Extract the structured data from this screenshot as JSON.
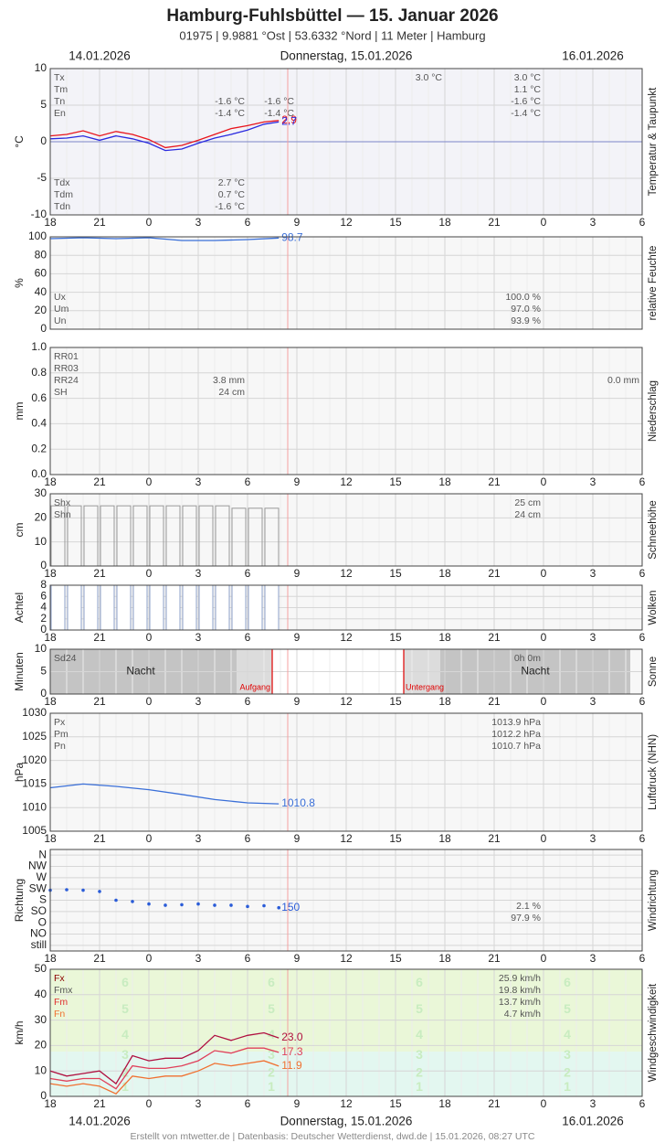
{
  "header": {
    "title": "Hamburg-Fuhlsbüttel  —  15. Januar 2026",
    "subtitle": "01975  |  9.9881 °Ost  |  53.6332 °Nord  |  11 Meter  |  Hamburg",
    "dates": [
      "14.01.2026",
      "Donnerstag, 15.01.2026",
      "16.01.2026"
    ]
  },
  "x_axis": {
    "xlim": [
      0,
      36
    ],
    "xticks": [
      {
        "value": 0,
        "label": "18"
      },
      {
        "value": 3,
        "label": "21"
      },
      {
        "value": 6,
        "label": "0"
      },
      {
        "value": 9,
        "label": "3"
      },
      {
        "value": 12,
        "label": "6"
      },
      {
        "value": 15,
        "label": "9"
      },
      {
        "value": 18,
        "label": "12"
      },
      {
        "value": 21,
        "label": "15"
      },
      {
        "value": 24,
        "label": "18"
      },
      {
        "value": 27,
        "label": "21"
      },
      {
        "value": 30,
        "label": "0"
      },
      {
        "value": 33,
        "label": "3"
      },
      {
        "value": 36,
        "label": "6"
      }
    ]
  },
  "chart_data": [
    {
      "type": "line",
      "y_label": "°C",
      "side_label": "Temperatur & Taupunkt",
      "ylim": [
        -10,
        10
      ],
      "yticks": [
        -10,
        -5,
        0,
        5,
        10
      ],
      "xtick_labels": true,
      "x": [
        0,
        1,
        2,
        3,
        4,
        5,
        6,
        7,
        8,
        9,
        10,
        11,
        12,
        13,
        13.9
      ],
      "series": [
        {
          "color": "#e8141c",
          "values": [
            0.8,
            1.0,
            1.5,
            0.8,
            1.4,
            1.0,
            0.3,
            -0.8,
            -0.5,
            0.2,
            1.0,
            1.8,
            2.2,
            2.7,
            2.9
          ],
          "value_labels": [
            null,
            null,
            null,
            null,
            null,
            null,
            null,
            null,
            null,
            null,
            null,
            null,
            null,
            null,
            "2.9"
          ]
        },
        {
          "color": "#2a2adf",
          "values": [
            0.4,
            0.5,
            0.8,
            0.2,
            0.8,
            0.4,
            -0.2,
            -1.2,
            -1.0,
            -0.2,
            0.5,
            1.0,
            1.6,
            2.4,
            2.7
          ],
          "value_labels": [
            null,
            null,
            null,
            null,
            null,
            null,
            null,
            null,
            null,
            null,
            null,
            null,
            null,
            null,
            "2.7"
          ]
        }
      ],
      "stats": [
        {
          "position": "top",
          "labels": [
            "Tx",
            "Tm",
            "Tn",
            "En"
          ],
          "columns": [
            [
              null,
              null,
              "-1.6 °C",
              "-1.4 °C"
            ],
            [
              null,
              null,
              "-1.6 °C",
              "-1.4 °C"
            ],
            [
              "3.0 °C",
              null,
              null,
              null
            ],
            [
              "3.0 °C",
              "1.1 °C",
              "-1.6 °C",
              "-1.4 °C"
            ]
          ]
        },
        {
          "position": "bottom",
          "labels": [
            "Tdx",
            "Tdm",
            "Tdn"
          ],
          "columns": [
            [
              "2.7 °C",
              "0.7 °C",
              "-1.6 °C"
            ]
          ]
        }
      ]
    },
    {
      "type": "line",
      "y_label": "%",
      "side_label": "relative Feuchte",
      "ylim": [
        0,
        100
      ],
      "yticks": [
        0,
        20,
        40,
        60,
        80,
        100
      ],
      "xtick_labels": false,
      "x": [
        0,
        2,
        4,
        6,
        8,
        10,
        12,
        13.9
      ],
      "series": [
        {
          "color": "#3a6fd8",
          "values": [
            98,
            99,
            98,
            99,
            96,
            96,
            97,
            98.7
          ],
          "value_labels": [
            null,
            null,
            null,
            null,
            null,
            null,
            null,
            "98.7"
          ]
        }
      ],
      "stats": [
        {
          "position": "bottom",
          "labels": [
            "Ux",
            "Um",
            "Un"
          ],
          "columns": [
            [
              "100.0 %",
              "97.0 %",
              "93.9 %"
            ]
          ]
        }
      ]
    },
    {
      "type": "bar",
      "y_label": "mm",
      "side_label": "Niederschlag",
      "ylim": [
        0,
        1
      ],
      "yticks": [
        {
          "value": 0,
          "label": "0.0"
        },
        0.2,
        0.4,
        0.6,
        0.8,
        {
          "value": 1,
          "label": "1.0"
        }
      ],
      "xtick_labels": true,
      "x": [
        0,
        1,
        2,
        3,
        4,
        5,
        6,
        7,
        8,
        9,
        10,
        11,
        12,
        13
      ],
      "series": [
        {
          "color": "#3a6fd8",
          "values": [
            0,
            0,
            0,
            0,
            0,
            0,
            0,
            0,
            0,
            0,
            0,
            0,
            0,
            0
          ]
        }
      ],
      "stats": [
        {
          "position": "top",
          "labels": [
            "RR01",
            "RR03",
            "RR24",
            "SH"
          ],
          "columns": [
            [
              null,
              null,
              "3.8 mm",
              "24 cm"
            ],
            [
              null,
              null,
              "0.0 mm",
              null
            ]
          ]
        }
      ]
    },
    {
      "type": "bar",
      "y_label": "cm",
      "side_label": "Schneehöhe",
      "ylim": [
        0,
        30
      ],
      "yticks": [
        0,
        10,
        20,
        30
      ],
      "xtick_labels": true,
      "x": [
        0,
        1,
        2,
        3,
        4,
        5,
        6,
        7,
        8,
        9,
        10,
        11,
        12,
        13
      ],
      "series": [
        {
          "color": "#999999",
          "values": [
            25,
            25,
            25,
            25,
            25,
            25,
            25,
            25,
            25,
            25,
            25,
            24,
            24,
            24
          ]
        }
      ],
      "stats": [
        {
          "position": "top",
          "labels": [
            "Shx",
            "Shn"
          ],
          "columns": [
            [
              "25 cm",
              "24 cm"
            ]
          ]
        }
      ]
    },
    {
      "type": "bar",
      "y_label": "Achtel",
      "side_label": "Wolken",
      "ylim": [
        0,
        8
      ],
      "yticks": [
        0,
        2,
        4,
        6,
        8
      ],
      "xtick_labels": true,
      "x": [
        0,
        1,
        2,
        3,
        4,
        5,
        6,
        7,
        8,
        9,
        10,
        11,
        12,
        13
      ],
      "series": [
        {
          "color": "#8ea0c8",
          "values": [
            8,
            8,
            8,
            8,
            8,
            8,
            8,
            8,
            8,
            8,
            8,
            8,
            8,
            8
          ]
        }
      ],
      "stats": []
    },
    {
      "type": "bar",
      "y_label": "Minuten",
      "side_label": "Sonne",
      "ylim": [
        0,
        10
      ],
      "yticks": [
        0,
        5,
        10
      ],
      "xtick_labels": true,
      "x": [
        0,
        1,
        2,
        3,
        4,
        5,
        6,
        7,
        8,
        9,
        10,
        11,
        12,
        13
      ],
      "series": [
        {
          "color": "#f0c020",
          "values": [
            0,
            0,
            0,
            0,
            0,
            0,
            0,
            0,
            0,
            0,
            0,
            0,
            0,
            0
          ]
        }
      ],
      "annotations": [
        {
          "text": "Nacht",
          "x": 5.5
        },
        {
          "text": "Aufgang",
          "x": 13.5,
          "line": true
        },
        {
          "text": "Untergang",
          "x": 21.5,
          "line": true
        },
        {
          "text": "Nacht",
          "x": 29.5
        }
      ],
      "stats": [
        {
          "position": "top",
          "labels": [
            "Sd24"
          ],
          "columns": [
            [
              "0h 0m"
            ]
          ]
        }
      ]
    },
    {
      "type": "line",
      "y_label": "hPa",
      "side_label": "Luftdruck (NHN)",
      "ylim": [
        1005,
        1030
      ],
      "yticks": [
        1005,
        1010,
        1015,
        1020,
        1025,
        1030
      ],
      "xtick_labels": true,
      "x": [
        0,
        2,
        4,
        6,
        8,
        10,
        12,
        13.9
      ],
      "series": [
        {
          "color": "#3a6fd8",
          "values": [
            1014.2,
            1015.0,
            1014.5,
            1013.8,
            1012.8,
            1011.7,
            1011.0,
            1010.8
          ],
          "value_labels": [
            null,
            null,
            null,
            null,
            null,
            null,
            null,
            "1010.8"
          ]
        }
      ],
      "stats": [
        {
          "position": "top",
          "labels": [
            "Px",
            "Pm",
            "Pn"
          ],
          "columns": [
            [
              "1013.9 hPa",
              "1012.2 hPa",
              "1010.7 hPa"
            ]
          ]
        }
      ]
    },
    {
      "type": "scatter",
      "y_label": "Richtung",
      "side_label": "Windrichtung",
      "ylim": [
        -22.5,
        382.5
      ],
      "yticks": [
        {
          "value": 0,
          "label": "still"
        },
        {
          "value": 45,
          "label": "NO"
        },
        {
          "value": 90,
          "label": "O"
        },
        {
          "value": 135,
          "label": "SO"
        },
        {
          "value": 180,
          "label": "S"
        },
        {
          "value": 225,
          "label": "SW"
        },
        {
          "value": 270,
          "label": "W"
        },
        {
          "value": 315,
          "label": "NW"
        },
        {
          "value": 360,
          "label": "N"
        }
      ],
      "xtick_labels": true,
      "x": [
        0,
        1,
        2,
        3,
        4,
        5,
        6,
        7,
        8,
        9,
        10,
        11,
        12,
        13,
        13.9
      ],
      "series": [
        {
          "color": "#2a5cd8",
          "values": [
            220,
            222,
            220,
            215,
            180,
            175,
            165,
            160,
            162,
            165,
            160,
            160,
            155,
            158,
            150
          ],
          "value_labels": [
            null,
            null,
            null,
            null,
            null,
            null,
            null,
            null,
            null,
            null,
            null,
            null,
            null,
            null,
            "150"
          ]
        }
      ],
      "stats": [
        {
          "position": "top",
          "labels": [],
          "columns": [
            [
              null,
              null,
              null,
              null,
              "2.1 %",
              "97.9 %"
            ]
          ]
        }
      ]
    },
    {
      "type": "line",
      "y_label": "km/h",
      "side_label": "Windgeschwindigkeit",
      "ylim": [
        0,
        50
      ],
      "yticks": [
        0,
        10,
        20,
        30,
        40,
        50
      ],
      "xtick_labels": true,
      "beaufort": [
        {
          "value": 3.5,
          "label": "1"
        },
        {
          "value": 9,
          "label": "2"
        },
        {
          "value": 16,
          "label": "3"
        },
        {
          "value": 24,
          "label": "4"
        },
        {
          "value": 34,
          "label": "5"
        },
        {
          "value": 44.5,
          "label": "6"
        }
      ],
      "x": [
        0,
        1,
        2,
        3,
        4,
        5,
        6,
        7,
        8,
        9,
        10,
        11,
        12,
        13,
        13.9
      ],
      "series": [
        {
          "color": "#b01040",
          "values": [
            10,
            8,
            9,
            10,
            5,
            16,
            14,
            15,
            15,
            18,
            24,
            22,
            24,
            25,
            23.0
          ],
          "value_labels": [
            null,
            null,
            null,
            null,
            null,
            null,
            null,
            null,
            null,
            null,
            null,
            null,
            null,
            null,
            "23.0"
          ]
        },
        {
          "color": "#e0405a",
          "values": [
            7,
            6,
            7,
            7,
            3,
            12,
            11,
            11,
            12,
            14,
            18,
            17,
            19,
            19,
            17.3
          ],
          "value_labels": [
            null,
            null,
            null,
            null,
            null,
            null,
            null,
            null,
            null,
            null,
            null,
            null,
            null,
            null,
            "17.3"
          ]
        },
        {
          "color": "#f07030",
          "values": [
            5,
            4,
            5,
            4,
            1,
            8,
            7,
            8,
            8,
            10,
            13,
            12,
            13,
            14,
            11.9
          ],
          "value_labels": [
            null,
            null,
            null,
            null,
            null,
            null,
            null,
            null,
            null,
            null,
            null,
            null,
            null,
            null,
            "11.9"
          ]
        }
      ],
      "stats": [
        {
          "position": "top",
          "labels": [
            "Fx",
            "Fmx",
            "Fm",
            "Fn"
          ],
          "label_colors": [
            "#8b0000",
            "#555555",
            "#e03030",
            "#f07030"
          ],
          "columns": [
            [
              "25.9 km/h",
              "19.8 km/h",
              "13.7 km/h",
              "4.7 km/h"
            ]
          ]
        }
      ]
    }
  ],
  "footer": "Erstellt von mtwetter.de | Datenbasis: Deutscher Wetterdienst, dwd.de | 15.01.2026, 08:27 UTC"
}
